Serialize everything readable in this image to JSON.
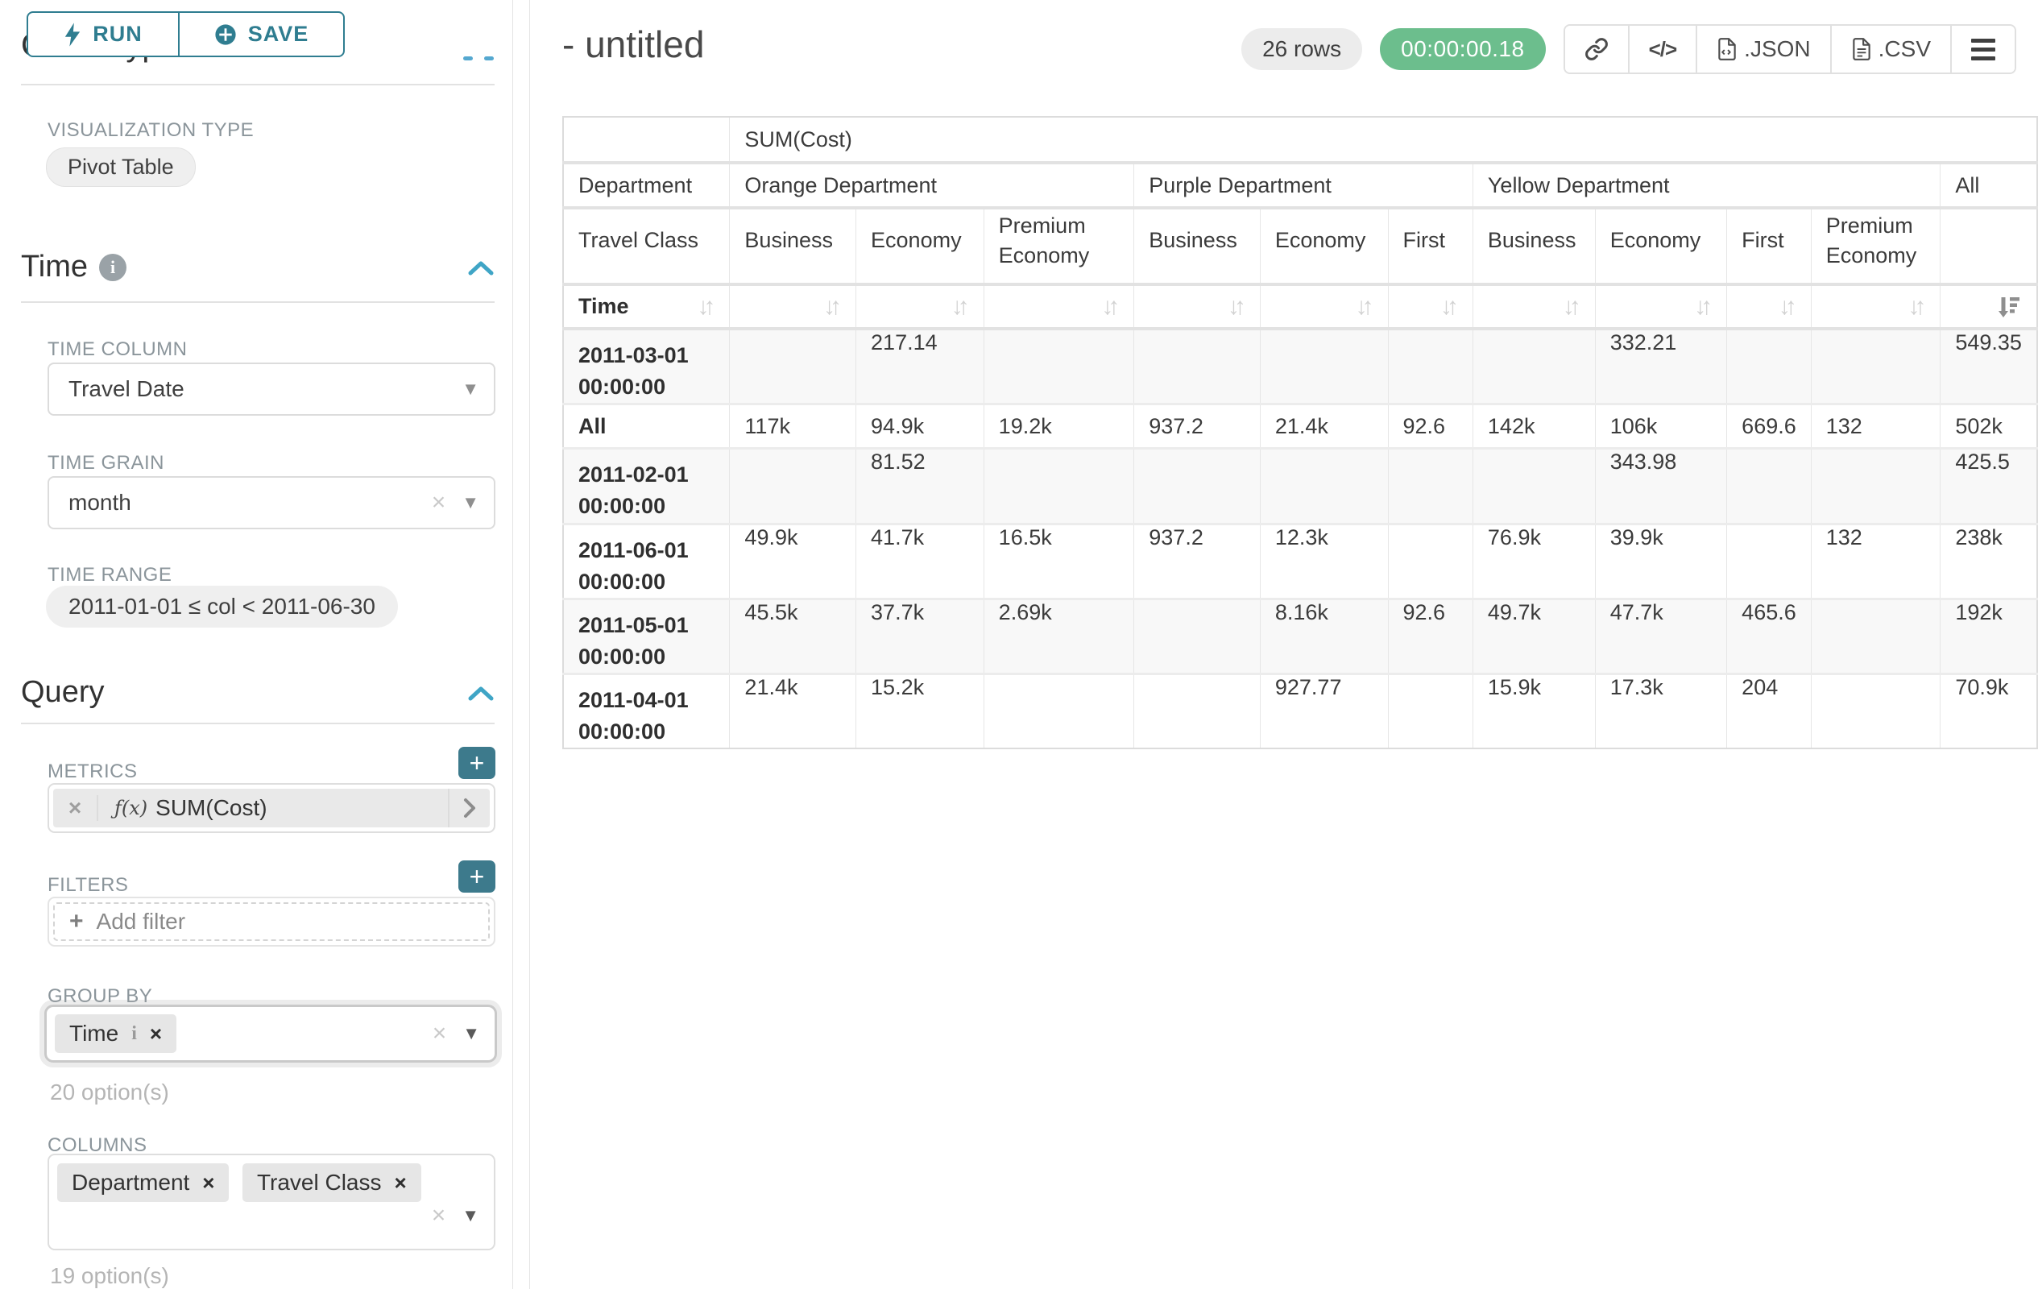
{
  "colors": {
    "accent_teal": "#2f7d90",
    "plus_button_teal": "#3d7a8c",
    "chevron_blue": "#3fa5c6",
    "badge_green": "#6cbe8d"
  },
  "sidebar": {
    "run_button": "RUN",
    "save_button": "SAVE",
    "chart_type_heading": "Chart Type",
    "visualization_type_label": "VISUALIZATION TYPE",
    "visualization_type_value": "Pivot Table",
    "time_section_title": "Time",
    "time_column_label": "TIME COLUMN",
    "time_column_value": "Travel Date",
    "time_grain_label": "TIME GRAIN",
    "time_grain_value": "month",
    "time_range_label": "TIME RANGE",
    "time_range_value": "2011-01-01 ≤ col < 2011-06-30",
    "query_section_title": "Query",
    "metrics_label": "METRICS",
    "metric_fx": "ƒ(x)",
    "metric_value": "SUM(Cost)",
    "filters_label": "FILTERS",
    "add_filter_placeholder": "Add filter",
    "group_by_label": "GROUP BY",
    "group_by_tags": [
      "Time"
    ],
    "group_by_options_hint": "20 option(s)",
    "columns_label": "COLUMNS",
    "columns_tags": [
      "Department",
      "Travel Class"
    ],
    "columns_options_hint": "19 option(s)"
  },
  "header": {
    "title": "- untitled",
    "row_count_badge": "26 rows",
    "timer_badge": "00:00:00.18",
    "export_json_label": ".JSON",
    "export_csv_label": ".CSV"
  },
  "chart_data": {
    "type": "table",
    "metric_header": "SUM(Cost)",
    "row_dimension_labels": {
      "level1": "Department",
      "level2": "Travel Class",
      "level3": "Time"
    },
    "column_groups": [
      {
        "label": "Orange Department",
        "children": [
          "Business",
          "Economy",
          "Premium Economy"
        ]
      },
      {
        "label": "Purple Department",
        "children": [
          "Business",
          "Economy",
          "First"
        ]
      },
      {
        "label": "Yellow Department",
        "children": [
          "Business",
          "Economy",
          "First",
          "Premium Economy"
        ]
      },
      {
        "label": "All",
        "children": [
          ""
        ]
      }
    ],
    "sorted_column": "All",
    "sort_direction": "descending",
    "rows": [
      {
        "label": "2011-03-01 00:00:00",
        "values": [
          "",
          "217.14",
          "",
          "",
          "",
          "",
          "",
          "332.21",
          "",
          "",
          "549.35"
        ]
      },
      {
        "label": "All",
        "values": [
          "117k",
          "94.9k",
          "19.2k",
          "937.2",
          "21.4k",
          "92.6",
          "142k",
          "106k",
          "669.6",
          "132",
          "502k"
        ]
      },
      {
        "label": "2011-02-01 00:00:00",
        "values": [
          "",
          "81.52",
          "",
          "",
          "",
          "",
          "",
          "343.98",
          "",
          "",
          "425.5"
        ]
      },
      {
        "label": "2011-06-01 00:00:00",
        "values": [
          "49.9k",
          "41.7k",
          "16.5k",
          "937.2",
          "12.3k",
          "",
          "76.9k",
          "39.9k",
          "",
          "132",
          "238k"
        ]
      },
      {
        "label": "2011-05-01 00:00:00",
        "values": [
          "45.5k",
          "37.7k",
          "2.69k",
          "",
          "8.16k",
          "92.6",
          "49.7k",
          "47.7k",
          "465.6",
          "",
          "192k"
        ]
      },
      {
        "label": "2011-04-01 00:00:00",
        "values": [
          "21.4k",
          "15.2k",
          "",
          "",
          "927.77",
          "",
          "15.9k",
          "17.3k",
          "204",
          "",
          "70.9k"
        ]
      }
    ]
  }
}
